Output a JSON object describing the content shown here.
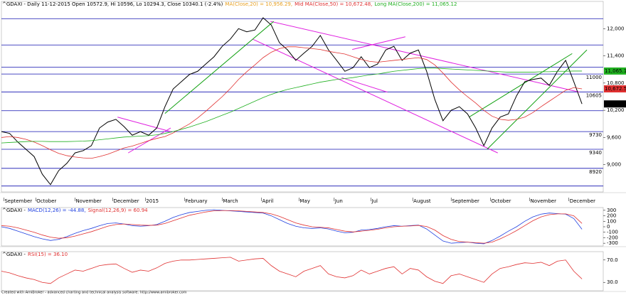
{
  "chart_data": [
    {
      "type": "line",
      "title": "^GDAXI - Daily 11-12-2015 Open 10572.9, Hi 10596, Lo 10294.3, Close 10340.1 (-2.4%)",
      "annotations": [
        {
          "text": "MA(Close,20) = 10,956.29,",
          "color": "#e8a020"
        }
      ],
      "x": [
        0,
        1,
        2,
        3,
        4,
        5,
        6,
        7,
        8,
        9,
        10,
        11,
        12,
        13,
        14,
        15,
        16,
        17,
        18,
        19,
        20,
        21,
        22,
        23,
        24,
        25,
        26,
        27,
        28,
        29,
        30,
        31,
        32,
        33,
        34,
        35,
        36,
        37,
        38,
        39,
        40,
        41,
        42,
        43,
        44,
        45,
        46,
        47,
        48,
        49,
        50,
        51,
        52,
        53,
        54,
        55,
        56,
        57,
        58,
        59,
        60,
        61,
        62,
        63,
        64,
        65,
        66,
        67,
        68,
        69,
        70,
        71
      ],
      "xlim": [
        0,
        73.6
      ],
      "xticks": [
        {
          "value": 0.3,
          "label": "September"
        },
        {
          "value": 4.2,
          "label": "October"
        },
        {
          "value": 9,
          "label": "November"
        },
        {
          "value": 13.6,
          "label": "December"
        },
        {
          "value": 17.6,
          "label": "2015"
        },
        {
          "value": 22.4,
          "label": "February"
        },
        {
          "value": 27,
          "label": "March"
        },
        {
          "value": 31.8,
          "label": "April"
        },
        {
          "value": 36.4,
          "label": "May"
        },
        {
          "value": 40.7,
          "label": "Jun"
        },
        {
          "value": 45.2,
          "label": "Jul"
        },
        {
          "value": 50.3,
          "label": "August"
        },
        {
          "value": 55,
          "label": "September"
        },
        {
          "value": 59.8,
          "label": "October"
        },
        {
          "value": 64.6,
          "label": "November"
        },
        {
          "value": 69.4,
          "label": "December"
        }
      ],
      "ylim": [
        8400,
        12600
      ],
      "yticks": [
        {
          "value": 12000,
          "label": "12,000"
        },
        {
          "value": 11400,
          "label": "11,400"
        },
        {
          "value": 10800,
          "label": "10,800"
        },
        {
          "value": 10200,
          "label": "10,200"
        },
        {
          "value": 9600,
          "label": "9,600"
        },
        {
          "value": 9000,
          "label": "9,000"
        }
      ],
      "hlines": [
        12220,
        11640,
        11150,
        {
          "value": 11000,
          "label": "11000"
        },
        {
          "value": 10605,
          "label": "10605"
        },
        10190,
        {
          "value": 9730,
          "label": "9730"
        },
        {
          "value": 9340,
          "label": "9340"
        },
        {
          "value": 8920,
          "label": "8920"
        },
        8530
      ],
      "hline_color": "#1010b0",
      "trendlines": [
        {
          "color": "#e020e0",
          "points": [
            32.9,
            12160,
            70.7,
            10600
          ]
        },
        {
          "color": "#e020e0",
          "points": [
            30.7,
            11770,
            60.7,
            9260
          ]
        },
        {
          "color": "#e020e0",
          "points": [
            14.2,
            10050,
            20.7,
            9730
          ]
        },
        {
          "color": "#e020e0",
          "points": [
            15.5,
            9260,
            20.7,
            9810
          ]
        },
        {
          "color": "#e020e0",
          "points": [
            41.6,
            10920,
            47.2,
            10600
          ]
        },
        {
          "color": "#e020e0",
          "points": [
            42.9,
            11540,
            49.4,
            11820
          ]
        },
        {
          "color": "#10a010",
          "points": [
            20,
            10130,
            33.3,
            12160
          ]
        },
        {
          "color": "#10a010",
          "points": [
            59.4,
            9340,
            71.6,
            11530
          ]
        },
        {
          "color": "#10a010",
          "points": [
            57.2,
            10050,
            69.8,
            11450
          ]
        }
      ],
      "series": [
        {
          "color": "#000000",
          "width": 1,
          "values": [
            9730,
            9690,
            9500,
            9340,
            9180,
            8790,
            8560,
            8870,
            9030,
            9260,
            9310,
            9420,
            9810,
            9940,
            10000,
            9840,
            9650,
            9730,
            9650,
            9810,
            10280,
            10670,
            10830,
            10990,
            11060,
            11220,
            11380,
            11610,
            11770,
            12000,
            11930,
            11970,
            12240,
            12080,
            11690,
            11530,
            11300,
            11460,
            11610,
            11850,
            11530,
            11300,
            11060,
            11140,
            11380,
            11140,
            11220,
            11530,
            11610,
            11300,
            11460,
            11530,
            11060,
            10440,
            9970,
            10200,
            10280,
            10120,
            9810,
            9420,
            9810,
            10050,
            10120,
            10520,
            10830,
            10880,
            10910,
            10750,
            11060,
            11300,
            10830,
            10340.1
          ],
          "value_labels": [
            null,
            null,
            null,
            null,
            null,
            null,
            null,
            null,
            null,
            null,
            null,
            null,
            null,
            null,
            null,
            null,
            null,
            null,
            null,
            null,
            null,
            null,
            null,
            null,
            null,
            null,
            null,
            null,
            null,
            null,
            null,
            null,
            null,
            null,
            null,
            null,
            null,
            null,
            null,
            null,
            null,
            null,
            null,
            null,
            null,
            null,
            null,
            null,
            null,
            null,
            null,
            null,
            null,
            null,
            null,
            null,
            null,
            null,
            null,
            null,
            null,
            null,
            null,
            null,
            null,
            null,
            null,
            null,
            null,
            null,
            null,
            "10,340.1"
          ]
        },
        {
          "name": "Mid MA(Close,50) = 10,672.48,",
          "color": "#e03030",
          "width": 0.8,
          "values": [
            9600,
            9620,
            9600,
            9560,
            9500,
            9420,
            9330,
            9250,
            9200,
            9170,
            9150,
            9140,
            9180,
            9230,
            9300,
            9370,
            9410,
            9470,
            9530,
            9580,
            9620,
            9700,
            9800,
            9900,
            10030,
            10180,
            10340,
            10500,
            10680,
            10880,
            11050,
            11200,
            11360,
            11480,
            11560,
            11600,
            11600,
            11580,
            11560,
            11540,
            11500,
            11470,
            11440,
            11380,
            11320,
            11280,
            11260,
            11280,
            11300,
            11320,
            11340,
            11360,
            11320,
            11200,
            11020,
            10820,
            10650,
            10500,
            10360,
            10200,
            10070,
            10000,
            9980,
            10000,
            10050,
            10150,
            10280,
            10400,
            10520,
            10640,
            10700,
            10672.48
          ],
          "value_labels": [
            null,
            null,
            null,
            null,
            null,
            null,
            null,
            null,
            null,
            null,
            null,
            null,
            null,
            null,
            null,
            null,
            null,
            null,
            null,
            null,
            null,
            null,
            null,
            null,
            null,
            null,
            null,
            null,
            null,
            null,
            null,
            null,
            null,
            null,
            null,
            null,
            null,
            null,
            null,
            null,
            null,
            null,
            null,
            null,
            null,
            null,
            null,
            null,
            null,
            null,
            null,
            null,
            null,
            null,
            null,
            null,
            null,
            null,
            null,
            null,
            null,
            null,
            null,
            null,
            null,
            null,
            null,
            null,
            null,
            null,
            null,
            "10,672.5"
          ]
        },
        {
          "name": "Long MA(Close,200) = 11,065.12",
          "color": "#20b020",
          "width": 0.8,
          "values": [
            9480,
            9490,
            9500,
            9510,
            9515,
            9515,
            9510,
            9510,
            9510,
            9515,
            9520,
            9530,
            9550,
            9570,
            9590,
            9610,
            9620,
            9630,
            9640,
            9660,
            9690,
            9730,
            9780,
            9830,
            9890,
            9950,
            10020,
            10090,
            10160,
            10240,
            10320,
            10400,
            10480,
            10550,
            10610,
            10660,
            10700,
            10740,
            10780,
            10820,
            10850,
            10880,
            10900,
            10920,
            10950,
            10980,
            11000,
            11030,
            11060,
            11080,
            11100,
            11120,
            11130,
            11130,
            11120,
            11110,
            11100,
            11090,
            11080,
            11070,
            11060,
            11050,
            11040,
            11040,
            11040,
            11040,
            11050,
            11050,
            11060,
            11060,
            11065,
            11065.12
          ],
          "value_labels": [
            null,
            null,
            null,
            null,
            null,
            null,
            null,
            null,
            null,
            null,
            null,
            null,
            null,
            null,
            null,
            null,
            null,
            null,
            null,
            null,
            null,
            null,
            null,
            null,
            null,
            null,
            null,
            null,
            null,
            null,
            null,
            null,
            null,
            null,
            null,
            null,
            null,
            null,
            null,
            null,
            null,
            null,
            null,
            null,
            null,
            null,
            null,
            null,
            null,
            null,
            null,
            null,
            null,
            null,
            null,
            null,
            null,
            null,
            null,
            null,
            null,
            null,
            null,
            null,
            null,
            null,
            null,
            null,
            null,
            null,
            null,
            "11,065.1"
          ]
        }
      ]
    },
    {
      "type": "line",
      "title": "^GDAXI -",
      "x": [
        0,
        1,
        2,
        3,
        4,
        5,
        6,
        7,
        8,
        9,
        10,
        11,
        12,
        13,
        14,
        15,
        16,
        17,
        18,
        19,
        20,
        21,
        22,
        23,
        24,
        25,
        26,
        27,
        28,
        29,
        30,
        31,
        32,
        33,
        34,
        35,
        36,
        37,
        38,
        39,
        40,
        41,
        42,
        43,
        44,
        45,
        46,
        47,
        48,
        49,
        50,
        51,
        52,
        53,
        54,
        55,
        56,
        57,
        58,
        59,
        60,
        61,
        62,
        63,
        64,
        65,
        66,
        67,
        68,
        69,
        70,
        71
      ],
      "xlim": [
        0,
        73.6
      ],
      "ylim": [
        -350,
        350
      ],
      "yticks": [
        300,
        200,
        100,
        0,
        -100,
        -200,
        -300
      ],
      "series": [
        {
          "name": "MACD(12,26) = -44.88,",
          "color": "#2040e0",
          "width": 0.8,
          "values": [
            0,
            -30,
            -80,
            -130,
            -180,
            -220,
            -250,
            -230,
            -180,
            -120,
            -70,
            -30,
            20,
            60,
            70,
            50,
            20,
            10,
            20,
            40,
            100,
            170,
            220,
            260,
            280,
            300,
            310,
            300,
            290,
            280,
            270,
            260,
            250,
            200,
            130,
            60,
            10,
            -20,
            -30,
            -20,
            -40,
            -80,
            -110,
            -100,
            -60,
            -50,
            -30,
            0,
            20,
            10,
            20,
            30,
            -40,
            -150,
            -260,
            -300,
            -290,
            -280,
            -300,
            -310,
            -250,
            -170,
            -80,
            0,
            100,
            180,
            230,
            250,
            240,
            230,
            150,
            -44.88
          ]
        },
        {
          "name": "Signal(12,26,9) = 60.94",
          "color": "#e03030",
          "width": 0.8,
          "values": [
            20,
            10,
            -20,
            -60,
            -100,
            -150,
            -190,
            -210,
            -200,
            -170,
            -130,
            -90,
            -40,
            10,
            40,
            50,
            40,
            30,
            25,
            30,
            60,
            110,
            160,
            210,
            240,
            270,
            290,
            295,
            295,
            290,
            280,
            270,
            260,
            235,
            190,
            130,
            70,
            30,
            0,
            -10,
            -20,
            -50,
            -80,
            -95,
            -80,
            -65,
            -45,
            -20,
            0,
            10,
            15,
            25,
            5,
            -60,
            -160,
            -230,
            -270,
            -280,
            -290,
            -300,
            -280,
            -220,
            -150,
            -70,
            20,
            110,
            180,
            220,
            235,
            235,
            200,
            60.94
          ]
        }
      ]
    },
    {
      "type": "line",
      "title": "^GDAXI -",
      "x": [
        0,
        1,
        2,
        3,
        4,
        5,
        6,
        7,
        8,
        9,
        10,
        11,
        12,
        13,
        14,
        15,
        16,
        17,
        18,
        19,
        20,
        21,
        22,
        23,
        24,
        25,
        26,
        27,
        28,
        29,
        30,
        31,
        32,
        33,
        34,
        35,
        36,
        37,
        38,
        39,
        40,
        41,
        42,
        43,
        44,
        45,
        46,
        47,
        48,
        49,
        50,
        51,
        52,
        53,
        54,
        55,
        56,
        57,
        58,
        59,
        60,
        61,
        62,
        63,
        64,
        65,
        66,
        67,
        68,
        69,
        70,
        71
      ],
      "xlim": [
        0,
        73.6
      ],
      "ylim": [
        15,
        85
      ],
      "yticks": [
        {
          "value": 70,
          "label": "70.0"
        },
        {
          "value": 30,
          "label": "30.0"
        }
      ],
      "series": [
        {
          "name": "RSI(15) = 36.10",
          "color": "#e03030",
          "width": 0.8,
          "values": [
            50,
            47,
            42,
            38,
            35,
            30,
            28,
            38,
            45,
            52,
            50,
            55,
            60,
            62,
            63,
            55,
            48,
            52,
            50,
            56,
            64,
            68,
            70,
            70,
            71,
            72,
            73,
            74,
            75,
            68,
            70,
            72,
            73,
            60,
            50,
            45,
            40,
            50,
            55,
            60,
            45,
            40,
            38,
            42,
            52,
            45,
            50,
            55,
            58,
            45,
            55,
            52,
            40,
            32,
            28,
            42,
            45,
            40,
            35,
            30,
            45,
            55,
            58,
            62,
            65,
            64,
            66,
            60,
            68,
            70,
            50,
            36.1
          ]
        }
      ]
    }
  ],
  "footer": "Created with AmiBroker - advanced charting and technical analysis software. http://www.amibroker.com"
}
